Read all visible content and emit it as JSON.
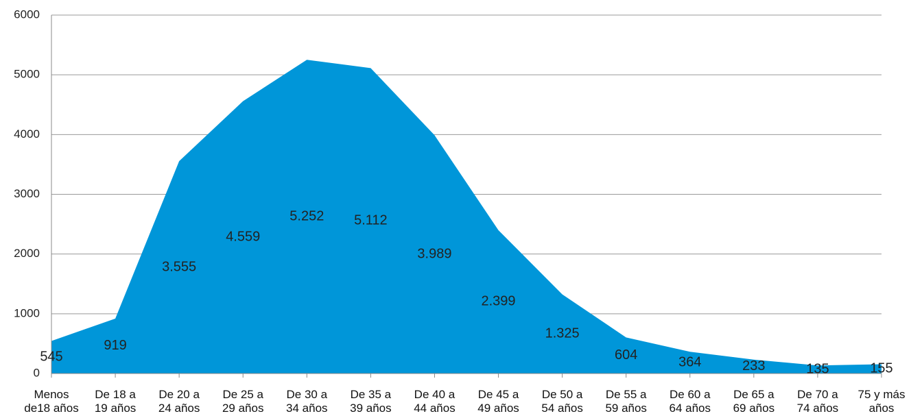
{
  "chart_data": {
    "type": "area",
    "categories": [
      "Menos\nde18 años",
      "De 18 a\n19 años",
      "De 20 a\n24 años",
      "De 25 a\n29 años",
      "De 30 a\n34 años",
      "De 35 a\n39 años",
      "De 40 a\n44 años",
      "De 45 a\n49 años",
      "De 50 a\n54 años",
      "De 55 a\n59 años",
      "De 60 a\n64 años",
      "De 65 a\n69 años",
      "De 70 a\n74 años",
      "75 y más\naños"
    ],
    "values": [
      545,
      919,
      3555,
      4559,
      5252,
      5112,
      3989,
      2399,
      1325,
      604,
      364,
      233,
      135,
      155
    ],
    "value_labels": [
      "545",
      "919",
      "3.555",
      "4.559",
      "5.252",
      "5.112",
      "3.989",
      "2.399",
      "1.325",
      "604",
      "364",
      "233",
      "135",
      "155"
    ],
    "color": "#0096d9",
    "ylim": [
      0,
      6000
    ],
    "yticks": [
      0,
      1000,
      2000,
      3000,
      4000,
      5000,
      6000
    ],
    "grid": true
  }
}
